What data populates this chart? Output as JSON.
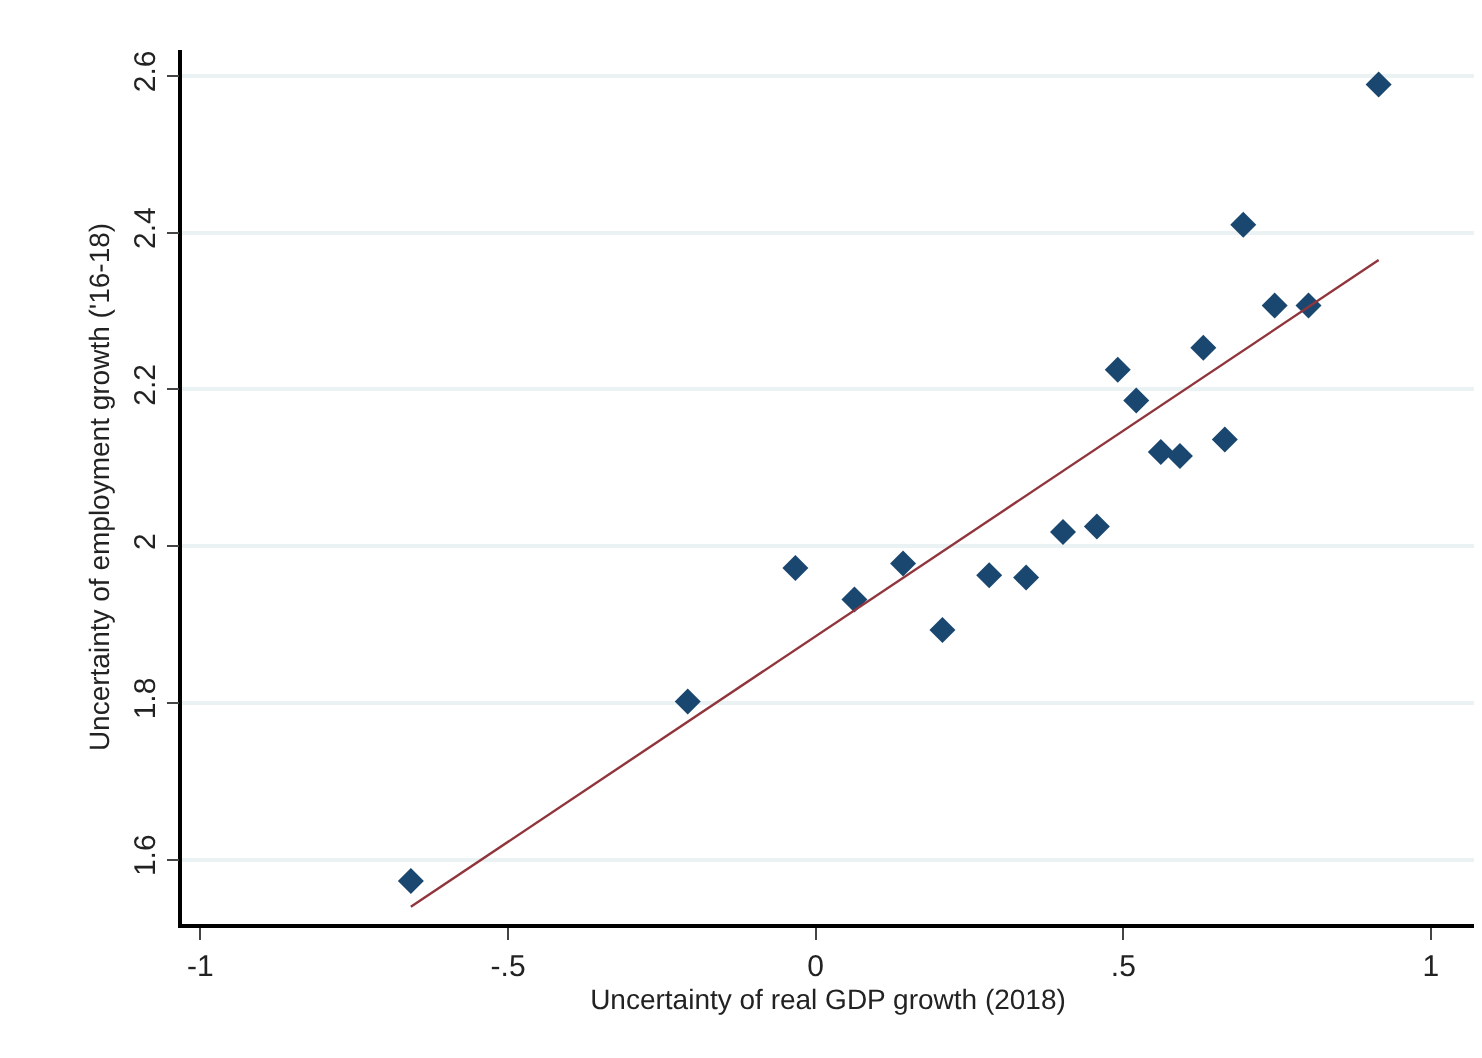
{
  "chart_data": {
    "type": "scatter",
    "xlabel": "Uncertainty of real GDP growth (2018)",
    "ylabel": "Uncertainty of employment growth ('16-18)",
    "xlim": [
      -1.03,
      1.07
    ],
    "ylim": [
      1.518,
      2.633
    ],
    "xticks": [
      {
        "value": -1,
        "label": "-1"
      },
      {
        "value": -0.5,
        "label": "-.5"
      },
      0,
      {
        "value": 0.5,
        "label": ".5"
      },
      1
    ],
    "yticks": [
      1.6,
      1.8,
      2,
      2.2,
      2.4,
      2.6
    ],
    "grid": "y",
    "marker": "diamond",
    "series": [
      {
        "color": "#1a476f",
        "x": [
          -0.658,
          -0.208,
          -0.033,
          0.063,
          0.142,
          0.206,
          0.282,
          0.342,
          0.402,
          0.457,
          0.491,
          0.521,
          0.561,
          0.592,
          0.63,
          0.665,
          0.695,
          0.746,
          0.801,
          0.915
        ],
        "values": [
          1.573,
          1.802,
          1.972,
          1.932,
          1.978,
          1.893,
          1.963,
          1.96,
          2.018,
          2.025,
          2.225,
          2.186,
          2.12,
          2.115,
          2.253,
          2.136,
          2.41,
          2.307,
          2.307,
          2.589
        ]
      },
      {
        "type": "line",
        "color": "#90353b",
        "marker": "none",
        "line_style": "solid",
        "x": [
          -0.658,
          0.915
        ],
        "values": [
          1.54,
          2.365
        ]
      }
    ]
  }
}
